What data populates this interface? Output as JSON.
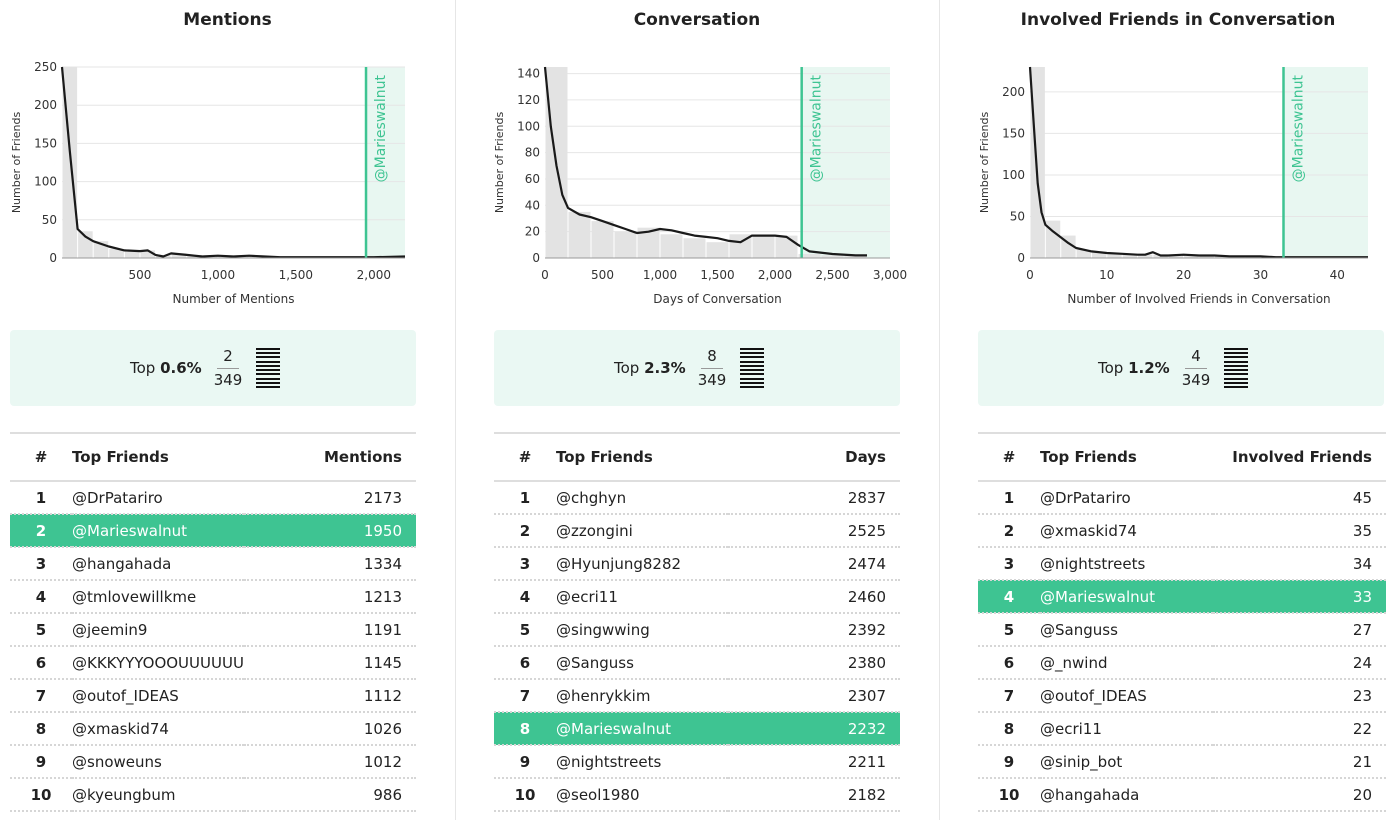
{
  "colors": {
    "accent": "#3ec492",
    "highlight_band": "#e8f7f1",
    "bar_fill": "#e3e3e3",
    "kde_line": "#1a1a1a"
  },
  "icons": [
    "stacked-bars-icon"
  ],
  "panels": [
    {
      "title": "Mentions",
      "rank": {
        "prefix": "Top",
        "percent": "0.6%",
        "numerator": "2",
        "denominator": "349"
      },
      "table": {
        "headers": {
          "rank": "#",
          "name": "Top Friends",
          "value": "Mentions"
        },
        "highlight_index": 1,
        "rows": [
          {
            "rank": "1",
            "name": "@DrPatariro",
            "value": "2173"
          },
          {
            "rank": "2",
            "name": "@Marieswalnut",
            "value": "1950"
          },
          {
            "rank": "3",
            "name": "@hangahada",
            "value": "1334"
          },
          {
            "rank": "4",
            "name": "@tmlovewillkme",
            "value": "1213"
          },
          {
            "rank": "5",
            "name": "@jeemin9",
            "value": "1191"
          },
          {
            "rank": "6",
            "name": "@KKKYYYOOOUUUUUU",
            "value": "1145"
          },
          {
            "rank": "7",
            "name": "@outof_IDEAS",
            "value": "1112"
          },
          {
            "rank": "8",
            "name": "@xmaskid74",
            "value": "1026"
          },
          {
            "rank": "9",
            "name": "@snoweuns",
            "value": "1012"
          },
          {
            "rank": "10",
            "name": "@kyeungbum",
            "value": "986"
          }
        ]
      }
    },
    {
      "title": "Conversation",
      "rank": {
        "prefix": "Top",
        "percent": "2.3%",
        "numerator": "8",
        "denominator": "349"
      },
      "table": {
        "headers": {
          "rank": "#",
          "name": "Top Friends",
          "value": "Days"
        },
        "highlight_index": 7,
        "rows": [
          {
            "rank": "1",
            "name": "@chghyn",
            "value": "2837"
          },
          {
            "rank": "2",
            "name": "@zzongini",
            "value": "2525"
          },
          {
            "rank": "3",
            "name": "@Hyunjung8282",
            "value": "2474"
          },
          {
            "rank": "4",
            "name": "@ecri11",
            "value": "2460"
          },
          {
            "rank": "5",
            "name": "@singwwing",
            "value": "2392"
          },
          {
            "rank": "6",
            "name": "@Sanguss",
            "value": "2380"
          },
          {
            "rank": "7",
            "name": "@henrykkim",
            "value": "2307"
          },
          {
            "rank": "8",
            "name": "@Marieswalnut",
            "value": "2232"
          },
          {
            "rank": "9",
            "name": "@nightstreets",
            "value": "2211"
          },
          {
            "rank": "10",
            "name": "@seol1980",
            "value": "2182"
          }
        ]
      }
    },
    {
      "title": "Involved Friends in Conversation",
      "rank": {
        "prefix": "Top",
        "percent": "1.2%",
        "numerator": "4",
        "denominator": "349"
      },
      "table": {
        "headers": {
          "rank": "#",
          "name": "Top Friends",
          "value": "Involved Friends"
        },
        "highlight_index": 3,
        "rows": [
          {
            "rank": "1",
            "name": "@DrPatariro",
            "value": "45"
          },
          {
            "rank": "2",
            "name": "@xmaskid74",
            "value": "35"
          },
          {
            "rank": "3",
            "name": "@nightstreets",
            "value": "34"
          },
          {
            "rank": "4",
            "name": "@Marieswalnut",
            "value": "33"
          },
          {
            "rank": "5",
            "name": "@Sanguss",
            "value": "27"
          },
          {
            "rank": "6",
            "name": "@_nwind",
            "value": "24"
          },
          {
            "rank": "7",
            "name": "@outof_IDEAS",
            "value": "23"
          },
          {
            "rank": "8",
            "name": "@ecri11",
            "value": "22"
          },
          {
            "rank": "9",
            "name": "@sinip_bot",
            "value": "21"
          },
          {
            "rank": "10",
            "name": "@hangahada",
            "value": "20"
          }
        ]
      }
    }
  ],
  "chart_data": [
    {
      "type": "bar",
      "title": "Mentions",
      "xlabel": "Number of Mentions",
      "ylabel": "Number of Friends",
      "xlim": [
        0,
        2200
      ],
      "ylim": [
        0,
        250
      ],
      "xticks": [
        500,
        1000,
        1500,
        2000
      ],
      "xtick_labels": [
        "500",
        "1,000",
        "1,500",
        "2,000"
      ],
      "yticks": [
        0,
        50,
        100,
        150,
        200,
        250
      ],
      "ytick_labels": [
        "0",
        "50",
        "100",
        "150",
        "200",
        "250"
      ],
      "grid": true,
      "bin_width": 100,
      "bins_start": 0,
      "values": [
        250,
        35,
        22,
        12,
        10,
        10,
        4,
        6,
        4,
        3,
        2,
        3,
        2,
        2,
        1,
        1,
        1,
        1,
        1,
        1,
        1,
        1
      ],
      "kde": {
        "x": [
          0,
          50,
          100,
          150,
          200,
          300,
          400,
          500,
          550,
          600,
          650,
          700,
          800,
          900,
          1000,
          1100,
          1200,
          1300,
          1400,
          1600,
          1800,
          2000,
          2200
        ],
        "y": [
          250,
          140,
          38,
          28,
          22,
          15,
          10,
          9,
          10,
          4,
          2,
          6,
          4,
          2,
          3,
          2,
          3,
          2,
          1,
          1,
          1,
          1,
          2
        ]
      },
      "marker": {
        "label": "@Marieswalnut",
        "value": 1950
      }
    },
    {
      "type": "bar",
      "title": "Conversation",
      "xlabel": "Days of Conversation",
      "ylabel": "Number of Friends",
      "xlim": [
        0,
        3000
      ],
      "ylim": [
        0,
        145
      ],
      "xticks": [
        0,
        500,
        1000,
        1500,
        2000,
        2500,
        3000
      ],
      "xtick_labels": [
        "0",
        "500",
        "1,000",
        "1,500",
        "2,000",
        "2,500",
        "3,000"
      ],
      "yticks": [
        0,
        20,
        40,
        60,
        80,
        100,
        120,
        140
      ],
      "ytick_labels": [
        "0",
        "20",
        "40",
        "60",
        "80",
        "100",
        "120",
        "140"
      ],
      "grid": true,
      "bin_width": 200,
      "bins_start": 0,
      "values": [
        145,
        35,
        28,
        20,
        23,
        18,
        15,
        12,
        18,
        17,
        17,
        3,
        2,
        2
      ],
      "kde": {
        "x": [
          0,
          50,
          100,
          150,
          200,
          300,
          400,
          500,
          600,
          700,
          800,
          900,
          1000,
          1100,
          1200,
          1300,
          1400,
          1500,
          1600,
          1700,
          1800,
          1900,
          2000,
          2100,
          2200,
          2300,
          2500,
          2700,
          2800
        ],
        "y": [
          145,
          100,
          70,
          48,
          38,
          33,
          31,
          28,
          25,
          22,
          19,
          20,
          22,
          21,
          19,
          17,
          16,
          15,
          13,
          12,
          17,
          17,
          17,
          16,
          10,
          5,
          3,
          2,
          2
        ]
      },
      "marker": {
        "label": "@Marieswalnut",
        "value": 2232
      }
    },
    {
      "type": "bar",
      "title": "Involved Friends in Conversation",
      "xlabel": "Number of Involved Friends in Conversation",
      "ylabel": "Number of Friends",
      "xlim": [
        0,
        44
      ],
      "ylim": [
        0,
        230
      ],
      "xticks": [
        0,
        10,
        20,
        30,
        40
      ],
      "xtick_labels": [
        "0",
        "10",
        "20",
        "30",
        "40"
      ],
      "yticks": [
        0,
        50,
        100,
        150,
        200
      ],
      "ytick_labels": [
        "0",
        "50",
        "100",
        "150",
        "200"
      ],
      "grid": true,
      "bin_width": 2,
      "bins_start": 0,
      "values": [
        230,
        45,
        27,
        10,
        7,
        5,
        4,
        4,
        4,
        3,
        3,
        2,
        2,
        2,
        2,
        2,
        1,
        1,
        1,
        1,
        1,
        1
      ],
      "kde": {
        "x": [
          0,
          0.5,
          1,
          1.5,
          2,
          3,
          4,
          5,
          6,
          8,
          10,
          12,
          14,
          15,
          16,
          17,
          18,
          20,
          22,
          24,
          26,
          28,
          30,
          32,
          34,
          36,
          38,
          40,
          42,
          44
        ],
        "y": [
          230,
          160,
          90,
          55,
          40,
          32,
          25,
          18,
          12,
          8,
          6,
          5,
          4,
          4,
          7,
          3,
          3,
          4,
          3,
          3,
          2,
          2,
          2,
          1,
          1,
          1,
          1,
          1,
          1,
          1
        ]
      },
      "marker": {
        "label": "@Marieswalnut",
        "value": 33
      }
    }
  ]
}
